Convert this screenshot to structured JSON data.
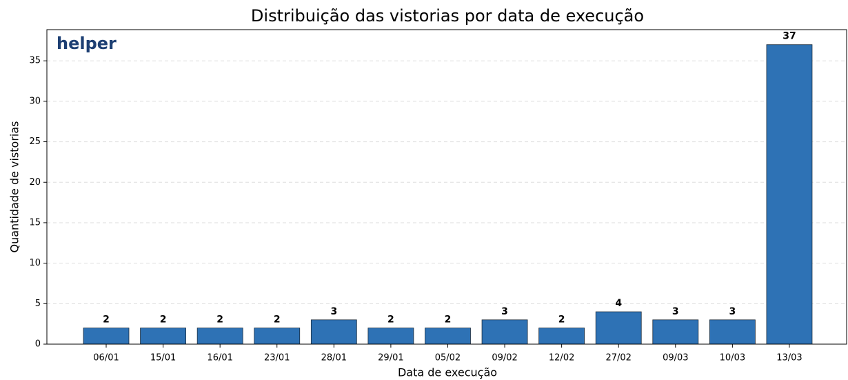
{
  "chart_data": {
    "type": "bar",
    "title": "Distribuição das vistorias por data de execução",
    "xlabel": "Data de execução",
    "ylabel": "Quantidade de vistorias",
    "logo": "helper",
    "categories": [
      "06/01",
      "15/01",
      "16/01",
      "23/01",
      "28/01",
      "29/01",
      "05/02",
      "09/02",
      "12/02",
      "27/02",
      "09/03",
      "10/03",
      "13/03"
    ],
    "values": [
      2,
      2,
      2,
      2,
      3,
      2,
      2,
      3,
      2,
      4,
      3,
      3,
      37
    ],
    "color": "#2e72b5",
    "ylim": [
      0,
      38.85
    ],
    "yticks": [
      0,
      5,
      10,
      15,
      20,
      25,
      30,
      35
    ],
    "grid": true
  }
}
